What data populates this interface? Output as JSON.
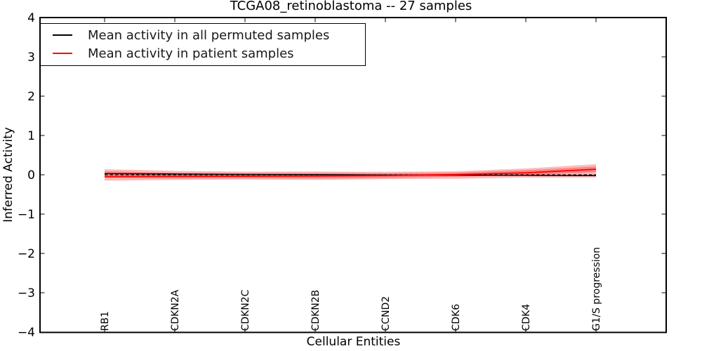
{
  "chart_data": {
    "type": "line",
    "title": "TCGA08_retinoblastoma -- 27 samples",
    "xlabel": "Cellular Entities",
    "ylabel": "Inferred Activity",
    "ylim": [
      -4,
      4
    ],
    "yticks": [
      -4,
      -3,
      -2,
      -1,
      0,
      1,
      2,
      3,
      4
    ],
    "grid": false,
    "legend_position": "upper left",
    "categories": [
      "RB1",
      "CDKN2A",
      "CDKN2C",
      "CDKN2B",
      "CCND2",
      "CDK6",
      "CDK4",
      "G1/S progression"
    ],
    "series": [
      {
        "name": "Mean activity in all permuted samples",
        "color": "#000000",
        "style": "solid",
        "values": [
          0.03,
          0.02,
          0.01,
          0.005,
          -0.005,
          -0.01,
          -0.015,
          -0.02
        ]
      },
      {
        "name": "Mean activity in patient samples",
        "color": "#ff0000",
        "style": "solid",
        "values": [
          -0.05,
          -0.04,
          -0.035,
          -0.03,
          -0.02,
          0.005,
          0.05,
          0.14
        ]
      },
      {
        "name": "zero-reference",
        "color": "#000000",
        "style": "dashed",
        "values": [
          0,
          0,
          0,
          0,
          0,
          0,
          0,
          0
        ]
      }
    ],
    "bands": [
      {
        "name": "patient-activity-outer-band",
        "color": "#ff0000",
        "opacity": 0.27,
        "hi": [
          0.14,
          0.1,
          0.08,
          0.085,
          0.075,
          0.09,
          0.16,
          0.27
        ],
        "lo": [
          -0.15,
          -0.13,
          -0.12,
          -0.13,
          -0.11,
          -0.1,
          -0.07,
          -0.07
        ]
      },
      {
        "name": "patient-activity-inner-band",
        "color": "#ff0000",
        "opacity": 0.3,
        "hi": [
          0.09,
          0.05,
          0.04,
          0.045,
          0.04,
          0.055,
          0.115,
          0.21
        ],
        "lo": [
          -0.07,
          -0.09,
          -0.085,
          -0.09,
          -0.08,
          -0.05,
          -0.01,
          0.07
        ]
      }
    ]
  },
  "legend": {
    "entries": [
      {
        "label": "Mean activity in all permuted samples",
        "color": "#000000"
      },
      {
        "label": "Mean activity in patient samples",
        "color": "#ff0000"
      }
    ]
  }
}
